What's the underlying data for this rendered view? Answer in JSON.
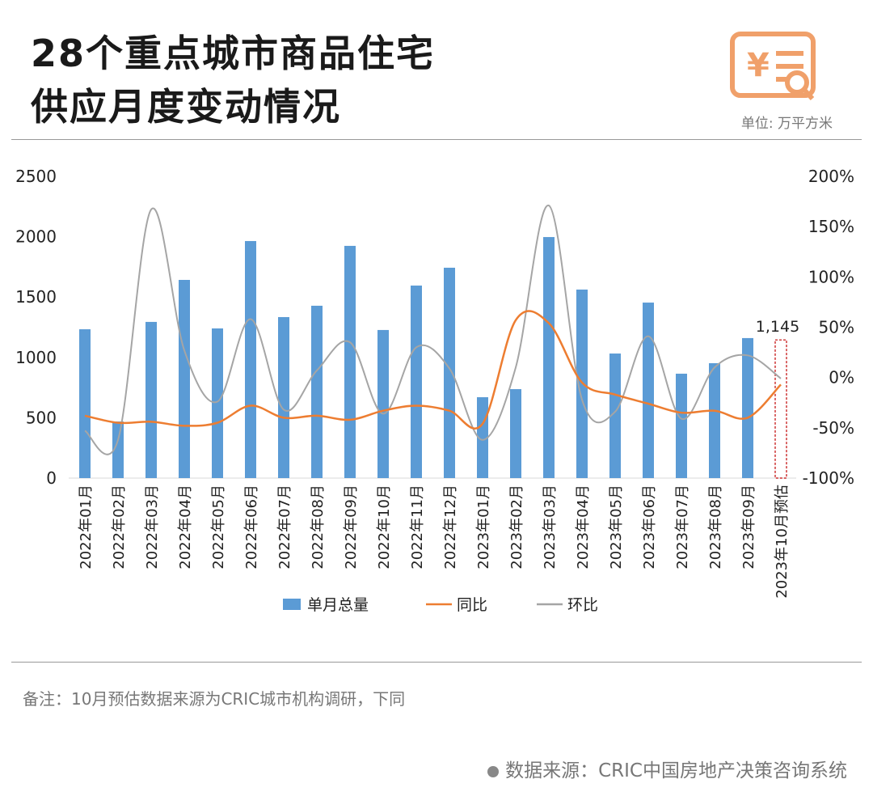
{
  "header": {
    "title_line1": "28个重点城市商品住宅",
    "title_line2": "供应月度变动情况",
    "unit": "单位: 万平方米",
    "icon": "finance-document-search-icon"
  },
  "chart_data": {
    "type": "bar+line",
    "categories": [
      "2022年01月",
      "2022年02月",
      "2022年03月",
      "2022年04月",
      "2022年05月",
      "2022年06月",
      "2022年07月",
      "2022年08月",
      "2022年09月",
      "2022年10月",
      "2022年11月",
      "2022年12月",
      "2023年01月",
      "2023年02月",
      "2023年03月",
      "2023年04月",
      "2023年05月",
      "2023年06月",
      "2023年07月",
      "2023年08月",
      "2023年09月",
      "2023年10月预估"
    ],
    "left_axis": {
      "ylim": [
        0,
        2500
      ],
      "ticks": [
        "0",
        "500",
        "1000",
        "1500",
        "2000",
        "2500"
      ]
    },
    "right_axis": {
      "ylim": [
        -100,
        200
      ],
      "ticks": [
        "-100%",
        "-50%",
        "0%",
        "50%",
        "100%",
        "150%",
        "200%"
      ]
    },
    "grid": false,
    "legend_placement": "bottom",
    "series": [
      {
        "name": "单月总量",
        "type": "bar",
        "axis": "left",
        "color": "#5b9bd5",
        "values": [
          1233,
          469,
          1294,
          1642,
          1240,
          1964,
          1334,
          1428,
          1924,
          1227,
          1595,
          1743,
          670,
          737,
          1997,
          1562,
          1032,
          1454,
          865,
          952,
          1160,
          1145
        ]
      },
      {
        "name": "同比",
        "type": "line",
        "axis": "right",
        "color": "#ed7d31",
        "values": [
          -38,
          -45,
          -44,
          -48,
          -45,
          -28,
          -40,
          -38,
          -42,
          -33,
          -28,
          -33,
          -46,
          57,
          54,
          -5,
          -17,
          -26,
          -35,
          -33,
          -40,
          -7
        ]
      },
      {
        "name": "环比",
        "type": "line",
        "axis": "right",
        "color": "#a5a5a5",
        "values": [
          -53,
          -62,
          167,
          27,
          -24,
          58,
          -32,
          7,
          35,
          -36,
          30,
          9,
          -62,
          10,
          171,
          -22,
          -34,
          41,
          -41,
          10,
          22,
          -1
        ]
      }
    ],
    "annotations": [
      {
        "category": "2023年10月预估",
        "label": "1,145",
        "highlight_color": "#c00000"
      }
    ]
  },
  "footer": {
    "note": "备注：10月预估数据来源为CRIC城市机构调研，下同",
    "source": "数据来源：CRIC中国房地产决策咨询系统"
  }
}
